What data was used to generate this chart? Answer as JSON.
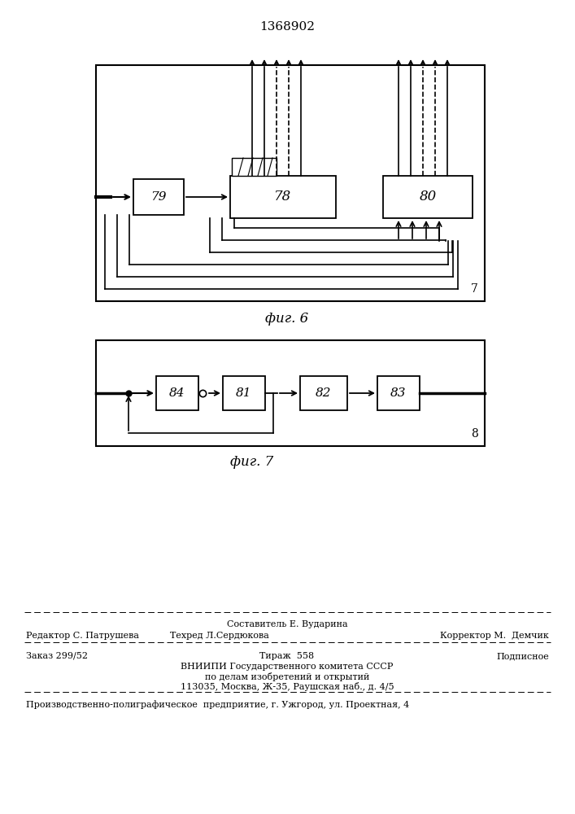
{
  "title": "1368902",
  "fig6_label": "7",
  "fig6_caption": "фиг. 6",
  "fig7_label": "8",
  "fig7_caption": "фиг. 7",
  "block79_label": "79",
  "block78_label": "78",
  "block80_label": "80",
  "block84_label": "84",
  "block81_label": "81",
  "block82_label": "82",
  "block83_label": "83",
  "footer_line1": "Составитель Е. Вударина",
  "footer_line2_left": "Редактор С. Патрушева",
  "footer_line2_mid": "Техред Л.Сердюкова",
  "footer_line2_right": "Корректор М.  Демчик",
  "footer_line3_left": "Заказ 299/52",
  "footer_line3_mid": "Тираж  558",
  "footer_line3_right": "Подписное",
  "footer_line4": "ВНИИПИ Государственного комитета СССР",
  "footer_line5": "по делам изобретений и открытий",
  "footer_line6": "113035, Москва, Ж-35, Раушская наб., д. 4/5",
  "footer_line7": "Производственно-полиграфическое  предприятие, г. Ужгород, ул. Проектная, 4",
  "bg_color": "#ffffff",
  "line_color": "#000000"
}
